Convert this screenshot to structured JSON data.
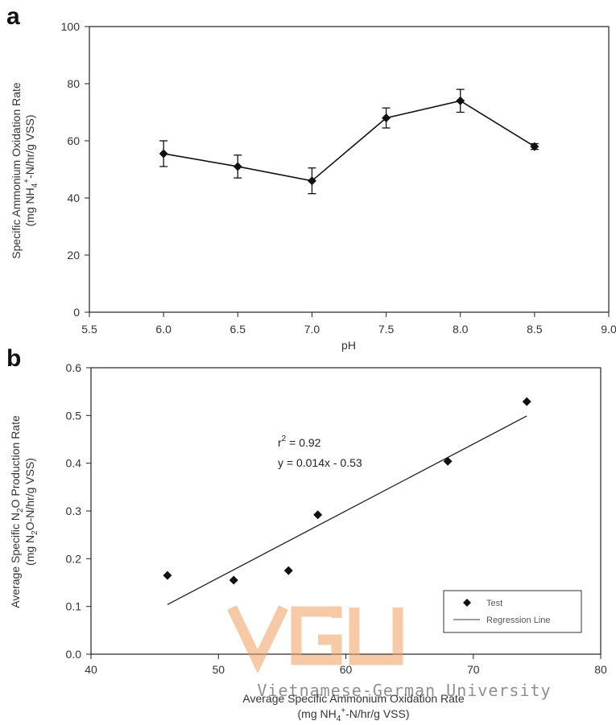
{
  "chart_data": [
    {
      "panel_label": "a",
      "type": "line",
      "xlabel": "pH",
      "ylabel": [
        "Specific Ammonium Oxidation Rate",
        "(mg NH4+-N/hr/g VSS)"
      ],
      "xlim": [
        5.5,
        9.0
      ],
      "ylim": [
        0,
        100
      ],
      "xticks": [
        "5.5",
        "6.0",
        "6.5",
        "7.0",
        "7.5",
        "8.0",
        "8.5",
        "9.0"
      ],
      "yticks": [
        "0",
        "20",
        "40",
        "60",
        "80",
        "100"
      ],
      "x": [
        6.0,
        6.5,
        7.0,
        7.5,
        8.0,
        8.5
      ],
      "y": [
        55.5,
        51,
        46,
        68,
        74,
        58
      ],
      "error": [
        4.5,
        4.0,
        4.5,
        3.5,
        4.0,
        1.0
      ],
      "grid": false,
      "marker": "diamond",
      "color": "#111111"
    },
    {
      "panel_label": "b",
      "type": "scatter",
      "xlabel": [
        "Average Specific Ammonium Oxidation Rate",
        "(mg NH4+-N/hr/g VSS)"
      ],
      "ylabel": [
        "Average Specific N2O Production Rate",
        "(mg N2O-N/hr/g VSS)"
      ],
      "xlim": [
        40,
        80
      ],
      "ylim": [
        0,
        0.6
      ],
      "xticks": [
        "40",
        "50",
        "60",
        "70",
        "80"
      ],
      "yticks": [
        "0.0",
        "0.1",
        "0.2",
        "0.3",
        "0.4",
        "0.5",
        "0.6"
      ],
      "series": [
        {
          "name": "Test",
          "x": [
            46,
            51.2,
            55.5,
            57.8,
            68,
            74.2
          ],
          "y": [
            0.165,
            0.155,
            0.175,
            0.292,
            0.404,
            0.529
          ]
        }
      ],
      "regression": {
        "name": "Regression Line",
        "x": [
          46,
          74.2
        ],
        "y": [
          0.104,
          0.499
        ]
      },
      "annotations": [
        "r  = 0.92",
        "y = 0.014x - 0.53"
      ],
      "legend_position": "bottom-right",
      "grid": false,
      "color": "#111111"
    }
  ],
  "watermark": {
    "logo_text": "VGU",
    "caption": "Vietnamese-German University",
    "color": "#f0a060"
  }
}
